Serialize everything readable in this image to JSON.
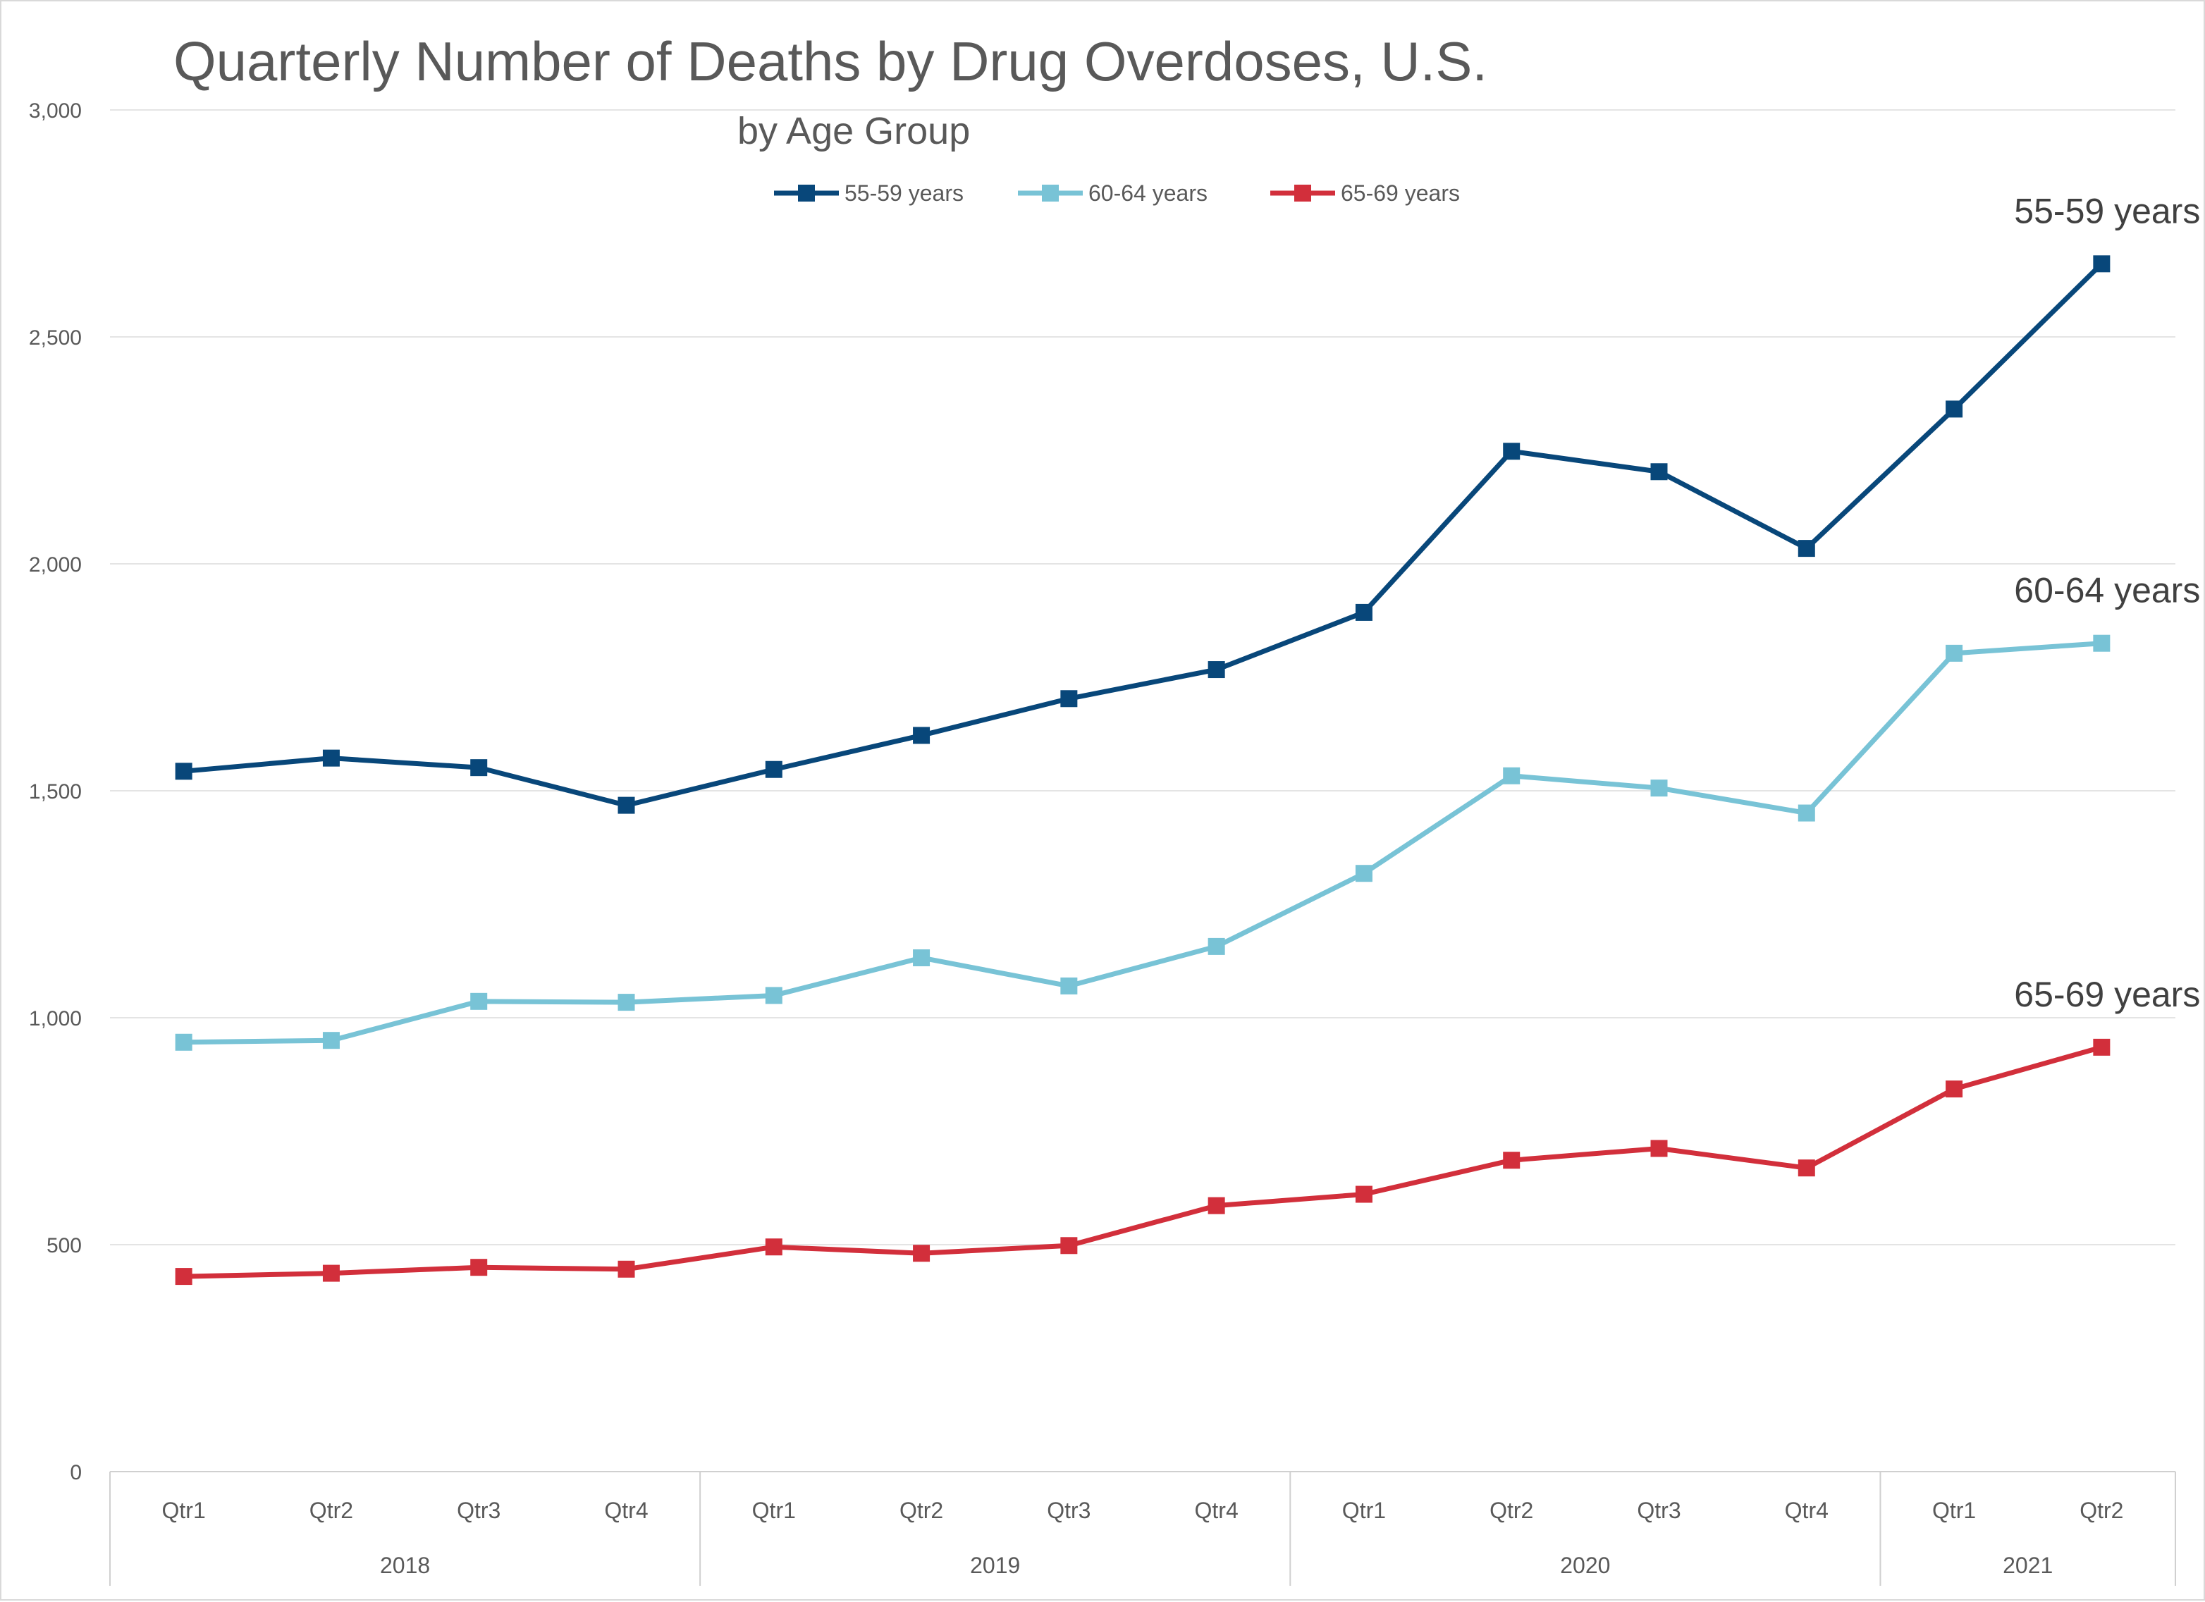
{
  "chart_data": {
    "type": "line",
    "title": "Quarterly Number of Deaths by Drug Overdoses, U.S.",
    "subtitle": "by Age Group",
    "categories": [
      "Qtr1",
      "Qtr2",
      "Qtr3",
      "Qtr4",
      "Qtr1",
      "Qtr2",
      "Qtr3",
      "Qtr4",
      "Qtr1",
      "Qtr2",
      "Qtr3",
      "Qtr4",
      "Qtr1",
      "Qtr2"
    ],
    "groups": [
      {
        "label": "2018",
        "count": 4
      },
      {
        "label": "2019",
        "count": 4
      },
      {
        "label": "2020",
        "count": 4
      },
      {
        "label": "2021",
        "count": 2
      }
    ],
    "ylim": [
      0,
      3000
    ],
    "yticks": [
      0,
      500,
      1000,
      1500,
      2000,
      2500,
      3000
    ],
    "ytick_labels": [
      "0",
      "500",
      "1,000",
      "1,500",
      "2,000",
      "2,500",
      "3,000"
    ],
    "grid": true,
    "legend_position": "top-center",
    "series": [
      {
        "name": "55-59 years",
        "color": "#08477a",
        "marker": "square",
        "values": [
          1543,
          1572,
          1551,
          1468,
          1547,
          1622,
          1703,
          1767,
          1893,
          2248,
          2203,
          2034,
          2341,
          2661
        ],
        "end_label": "55-59 years"
      },
      {
        "name": "60-64 years",
        "color": "#78c3d6",
        "marker": "square",
        "values": [
          946,
          950,
          1036,
          1034,
          1049,
          1132,
          1070,
          1157,
          1318,
          1533,
          1506,
          1451,
          1803,
          1825
        ],
        "end_label": "60-64 years"
      },
      {
        "name": "65-69 years",
        "color": "#d22f3b",
        "marker": "square",
        "values": [
          430,
          437,
          450,
          446,
          495,
          481,
          498,
          586,
          611,
          686,
          712,
          669,
          843,
          935
        ],
        "end_label": "65-69 years"
      }
    ]
  }
}
